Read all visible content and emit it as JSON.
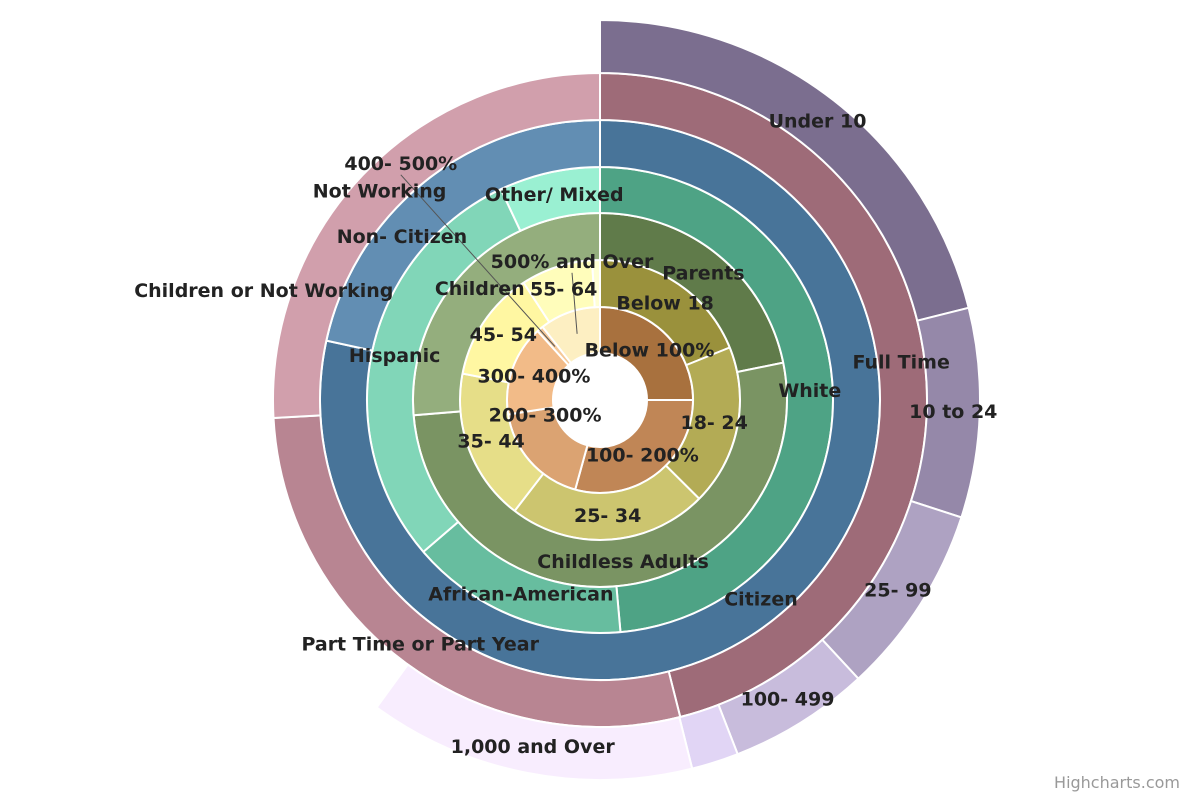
{
  "chart_data": {
    "type": "pie",
    "subtype": "multi-ring donut",
    "start_angle": "12 o'clock, clockwise",
    "rings": [
      {
        "slices": [
          {
            "name": "Below 100%",
            "value": 25.0,
            "color": "#a8713e"
          },
          {
            "name": "100- 200%",
            "value": 29.3,
            "color": "#c08656"
          },
          {
            "name": "200- 300%",
            "value": 18.2,
            "color": "#dba372"
          },
          {
            "name": "300- 400%",
            "value": 15.8,
            "color": "#f2bb88"
          },
          {
            "name": "400- 500%",
            "value": 1.1,
            "color": "#f5c898"
          },
          {
            "name": "500% and Over",
            "value": 10.6,
            "color": "#fdefc2"
          }
        ]
      },
      {
        "slices": [
          {
            "name": "Below 18",
            "value": 18.9,
            "color": "#9a913c"
          },
          {
            "name": "18- 24",
            "value": 18.6,
            "color": "#b3ab55"
          },
          {
            "name": "25- 34",
            "value": 23.0,
            "color": "#ccc56f"
          },
          {
            "name": "35- 44",
            "value": 17.6,
            "color": "#e6de88"
          },
          {
            "name": "45- 54",
            "value": 12.8,
            "color": "#fff7a2"
          },
          {
            "name": "55- 64",
            "value": 8.3,
            "color": "#fffdbb"
          },
          {
            "name": "",
            "value": 0.9,
            "color": "#ffffd4"
          }
        ]
      },
      {
        "slices": [
          {
            "name": "Parents",
            "value": 21.8,
            "color": "#607b4a"
          },
          {
            "name": "Childless Adults",
            "value": 51.9,
            "color": "#7a9463"
          },
          {
            "name": "Children",
            "value": 26.3,
            "color": "#94ae7d"
          }
        ]
      },
      {
        "slices": [
          {
            "name": "White",
            "value": 48.6,
            "color": "#4ea385"
          },
          {
            "name": "African-American",
            "value": 15.1,
            "color": "#67bd9f"
          },
          {
            "name": "Hispanic",
            "value": 29.3,
            "color": "#81d6b8"
          },
          {
            "name": "Other/ Mixed",
            "value": 7.0,
            "color": "#9af0d2"
          }
        ]
      },
      {
        "slices": [
          {
            "name": "Citizen",
            "value": 78.4,
            "color": "#487499"
          },
          {
            "name": "Non- Citizen",
            "value": 21.6,
            "color": "#628eb3"
          }
        ]
      },
      {
        "slices": [
          {
            "name": "Full Time",
            "value": 46.1,
            "color": "#9e6b78"
          },
          {
            "name": "Part Time or Part Year",
            "value": 28.1,
            "color": "#b88592"
          },
          {
            "name": "Not Working",
            "value": 25.9,
            "color": "#d19fac"
          }
        ]
      },
      {
        "slices": [
          {
            "name": "Under 10",
            "value": 21.1,
            "color": "#7b6e8f"
          },
          {
            "name": "10 to 24",
            "value": 8.9,
            "color": "#9588a9"
          },
          {
            "name": "25- 99",
            "value": 8.1,
            "color": "#aea2c2"
          },
          {
            "name": "100- 499",
            "value": 6.0,
            "color": "#c8bcdc"
          },
          {
            "name": "",
            "value": 2.0,
            "color": "#e1d5f5"
          },
          {
            "name": "1,000 and Over",
            "value": 13.9,
            "color": "#f8edfe"
          },
          {
            "name": "Children or Not Working",
            "value": 40.0,
            "color": "none"
          }
        ]
      }
    ]
  },
  "credit": "Highcharts.com"
}
